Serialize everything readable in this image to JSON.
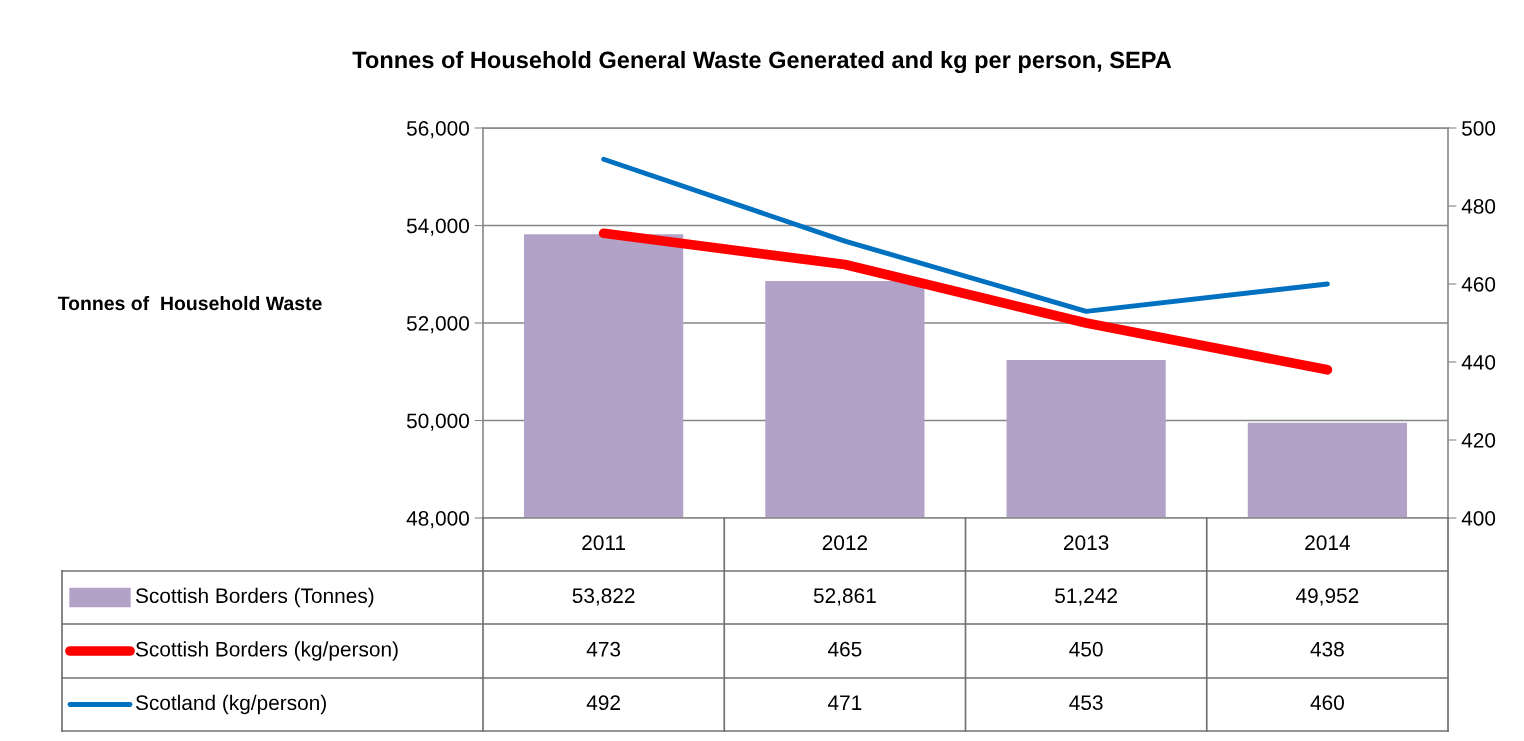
{
  "chart_data": {
    "type": "bar",
    "title": "Tonnes of Household General Waste Generated and kg per person, SEPA",
    "categories": [
      "2011",
      "2012",
      "2013",
      "2014"
    ],
    "series": [
      {
        "name": "Scottish Borders (Tonnes)",
        "color": "#b3a2c7",
        "values": [
          53822,
          52861,
          51242,
          49952
        ],
        "value_labels": [
          "53,822",
          "52,861",
          "51,242",
          "49,952"
        ]
      },
      {
        "name": "Scottish Borders (kg/person)",
        "type": "line",
        "axis": "y2",
        "color": "#ff0000",
        "values": [
          473,
          465,
          450,
          438
        ],
        "value_labels": [
          "473",
          "465",
          "450",
          "438"
        ]
      },
      {
        "name": "Scotland (kg/person)",
        "type": "line",
        "axis": "y2",
        "color": "#0070c0",
        "values": [
          492,
          471,
          453,
          460
        ],
        "value_labels": [
          "492",
          "471",
          "453",
          "460"
        ]
      }
    ],
    "ylabel": "Tonnes of  Household Waste",
    "ylim": [
      48000,
      56000
    ],
    "yticks": [
      {
        "value": 48000,
        "label": "48,000"
      },
      {
        "value": 50000,
        "label": "50,000"
      },
      {
        "value": 52000,
        "label": "52,000"
      },
      {
        "value": 54000,
        "label": "54,000"
      },
      {
        "value": 56000,
        "label": "56,000"
      }
    ],
    "y2lim": [
      400,
      500
    ],
    "y2ticks": [
      400,
      420,
      440,
      460,
      480,
      500
    ],
    "grid": "y",
    "legend": "bottom",
    "marker": "none",
    "line_style": "solid"
  }
}
